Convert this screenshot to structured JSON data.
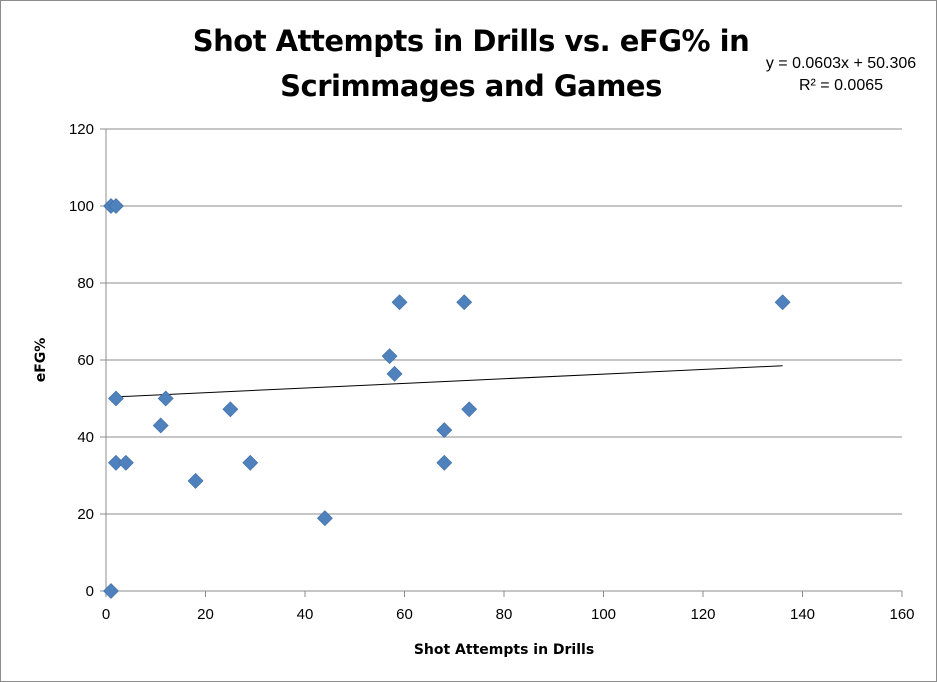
{
  "chart_data": {
    "type": "scatter",
    "title": "Shot Attempts in Drills vs. eFG% in\nScrimmages and Games",
    "xlabel": "Shot Attempts in Drills",
    "ylabel": "eFG%",
    "xlim": [
      0,
      160
    ],
    "ylim": [
      0,
      120
    ],
    "x_ticks": [
      0,
      20,
      40,
      60,
      80,
      100,
      120,
      140,
      160
    ],
    "y_ticks": [
      0,
      20,
      40,
      60,
      80,
      100,
      120
    ],
    "grid": "horizontal",
    "legend": "none",
    "marker": "diamond",
    "marker_color": "#4f81bd",
    "series": [
      {
        "points": [
          [
            1,
            100
          ],
          [
            2,
            100
          ],
          [
            1,
            0
          ],
          [
            2,
            50
          ],
          [
            2,
            33.3
          ],
          [
            4,
            33.3
          ],
          [
            11,
            43
          ],
          [
            12,
            50
          ],
          [
            18,
            28.6
          ],
          [
            25,
            47.2
          ],
          [
            29,
            33.3
          ],
          [
            44,
            18.9
          ],
          [
            57,
            61
          ],
          [
            58,
            56.4
          ],
          [
            59,
            75
          ],
          [
            68,
            41.8
          ],
          [
            68,
            33.3
          ],
          [
            72,
            75
          ],
          [
            73,
            47.2
          ],
          [
            136,
            75
          ]
        ]
      }
    ],
    "trendline": {
      "type": "linear",
      "slope": 0.0603,
      "intercept": 50.306,
      "x_range": [
        1,
        136
      ],
      "color": "#000000",
      "equation_text": "y = 0.0603x + 50.306",
      "r2_text": "R² = 0.0065"
    }
  }
}
